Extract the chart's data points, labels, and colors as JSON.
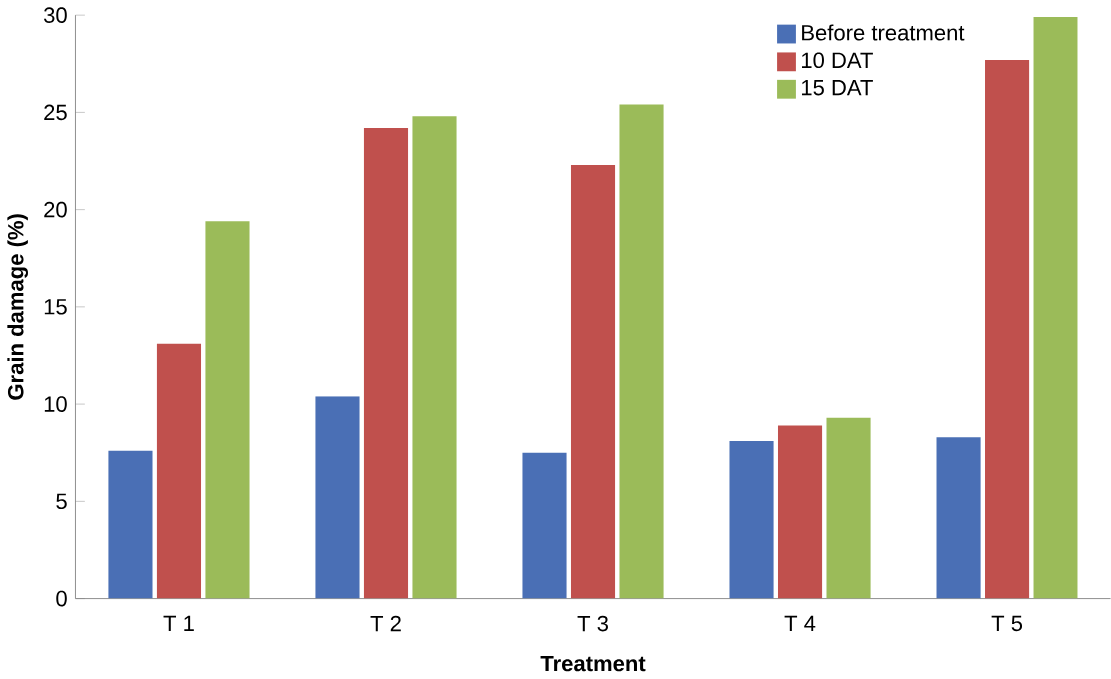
{
  "chart_data": {
    "type": "bar",
    "xlabel": "Treatment",
    "ylabel": "Grain damage (%)",
    "categories": [
      "T 1",
      "T 2",
      "T 3",
      "T 4",
      "T 5"
    ],
    "series": [
      {
        "name": "Before treatment",
        "color": "#4a6fb5",
        "values": [
          7.6,
          10.4,
          7.5,
          8.1,
          8.3
        ]
      },
      {
        "name": "10 DAT",
        "color": "#c0504d",
        "values": [
          13.1,
          24.2,
          22.3,
          8.9,
          27.7
        ]
      },
      {
        "name": "15 DAT",
        "color": "#9bbb59",
        "values": [
          19.4,
          24.8,
          25.4,
          9.3,
          29.9
        ]
      }
    ],
    "ylim": [
      0,
      30
    ],
    "yticks": [
      0,
      5,
      10,
      15,
      20,
      25,
      30
    ],
    "grid": false,
    "legend": "top right"
  }
}
